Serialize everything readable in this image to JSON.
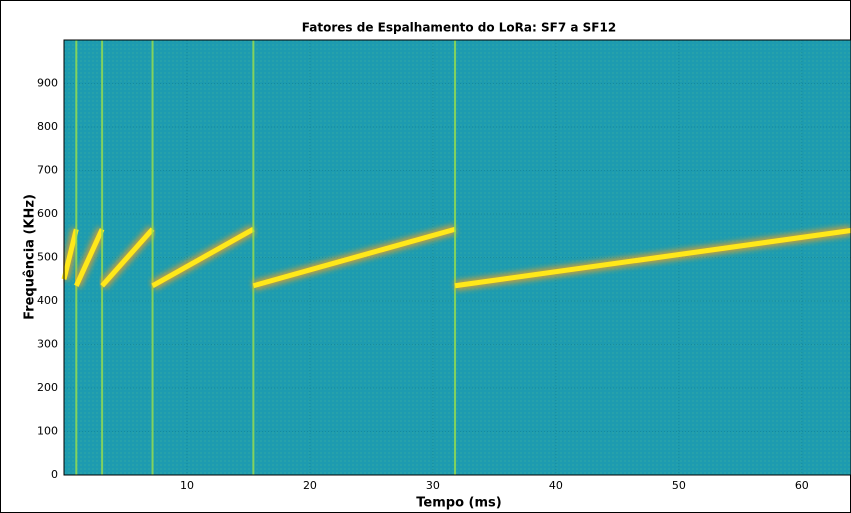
{
  "chart_data": {
    "type": "spectrogram",
    "title": "Fatores de Espalhamento do LoRa: SF7 a SF12",
    "xlabel": "Tempo (ms)",
    "ylabel": "Frequência (KHz)",
    "xlim": [
      0,
      64
    ],
    "ylim": [
      0,
      1000
    ],
    "xticks": [
      10,
      20,
      30,
      40,
      50,
      60
    ],
    "yticks": [
      0,
      100,
      200,
      300,
      400,
      500,
      600,
      700,
      800,
      900
    ],
    "grid": true,
    "background": "#1d9bb0",
    "color": "#ffe81a",
    "series": [
      {
        "x": [
          0,
          1
        ],
        "values": [
          450,
          565
        ]
      },
      {
        "x": [
          1,
          3.1
        ],
        "values": [
          435,
          565
        ]
      },
      {
        "x": [
          3.1,
          7.2
        ],
        "values": [
          435,
          565
        ]
      },
      {
        "x": [
          7.2,
          15.4
        ],
        "values": [
          435,
          565
        ]
      },
      {
        "x": [
          15.4,
          31.8
        ],
        "values": [
          435,
          565
        ]
      },
      {
        "x": [
          31.8,
          64
        ],
        "values": [
          435,
          562
        ]
      }
    ]
  }
}
